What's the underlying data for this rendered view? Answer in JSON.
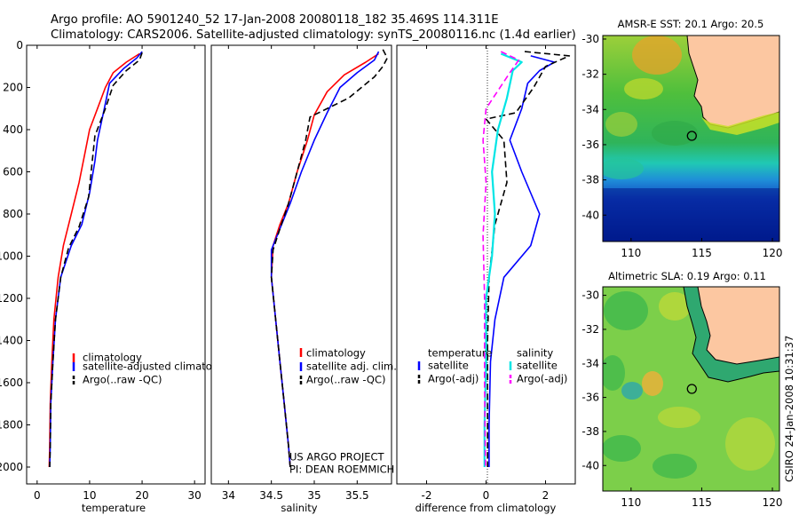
{
  "header": {
    "line1": "Argo profile: AO 5901240_52 17-Jan-2008 20080118_182 35.469S 114.311E",
    "line2": "Climatology: CARS2006. Satellite-adjusted climatology: synTS_20080116.nc (1.4d earlier)"
  },
  "credit": "CSIRO 24-Jan-2008 10:31:37",
  "colors": {
    "red": "#ff0000",
    "blue": "#0000ff",
    "black": "#000000",
    "cyan": "#00e5e5",
    "magenta": "#ff00ff"
  },
  "chart_data": [
    {
      "type": "line",
      "id": "temperature",
      "xlabel": "temperature",
      "xlim": [
        -2,
        32
      ],
      "ylim": [
        2080,
        0
      ],
      "xticks": [
        "0",
        "10",
        "20",
        "30"
      ],
      "yticks": [
        "0",
        "200",
        "400",
        "600",
        "800",
        "1000",
        "1200",
        "1400",
        "1600",
        "1800",
        "2000"
      ],
      "legend": [
        "climatology",
        "satellite-adjusted climatology",
        "Argo(..raw -QC)"
      ],
      "series": [
        {
          "name": "climatology",
          "color": "red",
          "dash": "solid",
          "x": [
            19.5,
            17.0,
            14.5,
            13.0,
            11.5,
            10.0,
            9.2,
            8.0,
            6.5,
            5.0,
            4.0,
            3.2,
            2.8,
            2.5,
            2.4,
            2.3
          ],
          "y": [
            40,
            80,
            130,
            200,
            300,
            400,
            500,
            650,
            800,
            950,
            1100,
            1300,
            1500,
            1700,
            1900,
            2000
          ]
        },
        {
          "name": "satellite-adjusted climatology",
          "color": "blue",
          "dash": "solid",
          "x": [
            20.0,
            19.0,
            16.5,
            13.8,
            12.8,
            11.5,
            11.0,
            10.0,
            8.5,
            6.5,
            4.5,
            3.5,
            3.0,
            2.6,
            2.5,
            2.4
          ],
          "y": [
            30,
            60,
            110,
            180,
            300,
            450,
            550,
            700,
            850,
            950,
            1100,
            1300,
            1500,
            1700,
            1900,
            2000
          ]
        },
        {
          "name": "Argo(..raw -QC)",
          "color": "black",
          "dash": "dash",
          "x": [
            20.0,
            19.5,
            17.0,
            14.5,
            13.0,
            11.0,
            10.5,
            9.8,
            8.0,
            6.0,
            4.5,
            3.5,
            3.0,
            2.6,
            2.5,
            2.4
          ],
          "y": [
            35,
            70,
            120,
            190,
            300,
            430,
            550,
            720,
            860,
            960,
            1100,
            1300,
            1500,
            1700,
            1900,
            2000
          ]
        }
      ]
    },
    {
      "type": "line",
      "id": "salinity",
      "xlabel": "salinity",
      "xlim": [
        33.8,
        35.9
      ],
      "ylim": [
        2080,
        0
      ],
      "xticks": [
        "34",
        "34.5",
        "35",
        "35.5"
      ],
      "legend": [
        "climatology",
        "satellite adj. clim.",
        "Argo(..raw -QC)"
      ],
      "annotation": [
        "US ARGO PROJECT",
        "PI: DEAN ROEMMICH"
      ],
      "series": [
        {
          "name": "climatology",
          "color": "red",
          "dash": "solid",
          "x": [
            35.75,
            35.6,
            35.35,
            35.15,
            35.0,
            34.92,
            34.8,
            34.7,
            34.6,
            34.52,
            34.5,
            34.55,
            34.6,
            34.65,
            34.7,
            34.72
          ],
          "y": [
            40,
            80,
            140,
            220,
            330,
            450,
            600,
            750,
            850,
            950,
            1100,
            1300,
            1500,
            1700,
            1900,
            2000
          ]
        },
        {
          "name": "satellite adj. clim.",
          "color": "blue",
          "dash": "solid",
          "x": [
            35.75,
            35.7,
            35.5,
            35.3,
            35.15,
            35.0,
            34.85,
            34.72,
            34.6,
            34.5,
            34.5,
            34.55,
            34.6,
            34.65,
            34.7,
            34.72
          ],
          "y": [
            30,
            70,
            130,
            200,
            320,
            450,
            600,
            750,
            870,
            970,
            1100,
            1300,
            1500,
            1700,
            1900,
            2000
          ]
        },
        {
          "name": "Argo(..raw -QC)",
          "color": "black",
          "dash": "dash",
          "x": [
            35.8,
            35.85,
            35.8,
            35.7,
            35.4,
            34.95,
            34.9,
            34.8,
            34.7,
            34.6,
            34.52,
            34.5,
            34.55,
            34.6,
            34.65,
            34.7,
            34.72
          ],
          "y": [
            20,
            60,
            100,
            150,
            250,
            340,
            450,
            600,
            750,
            870,
            970,
            1100,
            1300,
            1500,
            1700,
            1900,
            2000
          ]
        }
      ]
    },
    {
      "type": "line",
      "id": "difference",
      "xlabel": "difference from climatology",
      "xlim": [
        -3,
        3
      ],
      "ylim": [
        2080,
        0
      ],
      "xticks": [
        "-2",
        "0",
        "2"
      ],
      "legend_groups": [
        {
          "title": "temperature",
          "items": [
            "satellite",
            "Argo(-adj)"
          ]
        },
        {
          "title": "salinity",
          "items": [
            "satellite",
            "Argo(-adj)"
          ]
        }
      ],
      "series": [
        {
          "name": "temperature satellite",
          "color": "blue",
          "dash": "solid",
          "x": [
            1.5,
            2.3,
            1.8,
            1.4,
            1.2,
            0.8,
            1.2,
            1.8,
            1.5,
            0.6,
            0.3,
            0.15,
            0.1,
            0.1
          ],
          "y": [
            50,
            80,
            120,
            180,
            300,
            450,
            600,
            800,
            950,
            1100,
            1300,
            1500,
            1800,
            2000
          ]
        },
        {
          "name": "temperature Argo(-adj)",
          "color": "black",
          "dash": "dash",
          "x": [
            1.3,
            2.8,
            2.0,
            1.6,
            1.0,
            0.0,
            0.6,
            0.7,
            0.3,
            0.1,
            0.05,
            0.05,
            0.05
          ],
          "y": [
            30,
            50,
            100,
            200,
            320,
            350,
            450,
            650,
            850,
            1100,
            1400,
            1700,
            2000
          ]
        },
        {
          "name": "salinity satellite",
          "color": "cyan",
          "dash": "solid",
          "x": [
            0.5,
            1.2,
            0.9,
            0.7,
            0.4,
            0.2,
            0.3,
            0.2,
            0.0,
            0.0,
            -0.05,
            -0.05
          ],
          "y": [
            40,
            80,
            120,
            250,
            400,
            600,
            800,
            1000,
            1200,
            1500,
            1800,
            2000
          ]
        },
        {
          "name": "salinity Argo(-adj)",
          "color": "magenta",
          "dash": "dash",
          "x": [
            0.5,
            1.1,
            0.8,
            0.0,
            -0.1,
            0.0,
            -0.1,
            -0.05,
            -0.05,
            -0.02
          ],
          "y": [
            30,
            70,
            130,
            300,
            450,
            650,
            900,
            1200,
            1600,
            2000
          ]
        }
      ]
    },
    {
      "type": "heatmap",
      "id": "sst-map",
      "title": "AMSR-E SST: 20.1 Argo: 20.5",
      "xlim": [
        108,
        120.5
      ],
      "ylim": [
        -41.5,
        -29.8
      ],
      "xticks": [
        "110",
        "115",
        "120"
      ],
      "yticks": [
        "-30",
        "-32",
        "-34",
        "-36",
        "-38",
        "-40"
      ],
      "marker": {
        "lon": 114.3,
        "lat": -35.5
      }
    },
    {
      "type": "heatmap",
      "id": "sla-map",
      "title": "Altimetric SLA: 0.19 Argo: 0.11",
      "xlim": [
        108,
        120.5
      ],
      "ylim": [
        -41.5,
        -29.5
      ],
      "xticks": [
        "110",
        "115",
        "120"
      ],
      "yticks": [
        "-30",
        "-32",
        "-34",
        "-36",
        "-38",
        "-40"
      ],
      "marker": {
        "lon": 114.3,
        "lat": -35.5
      }
    }
  ]
}
